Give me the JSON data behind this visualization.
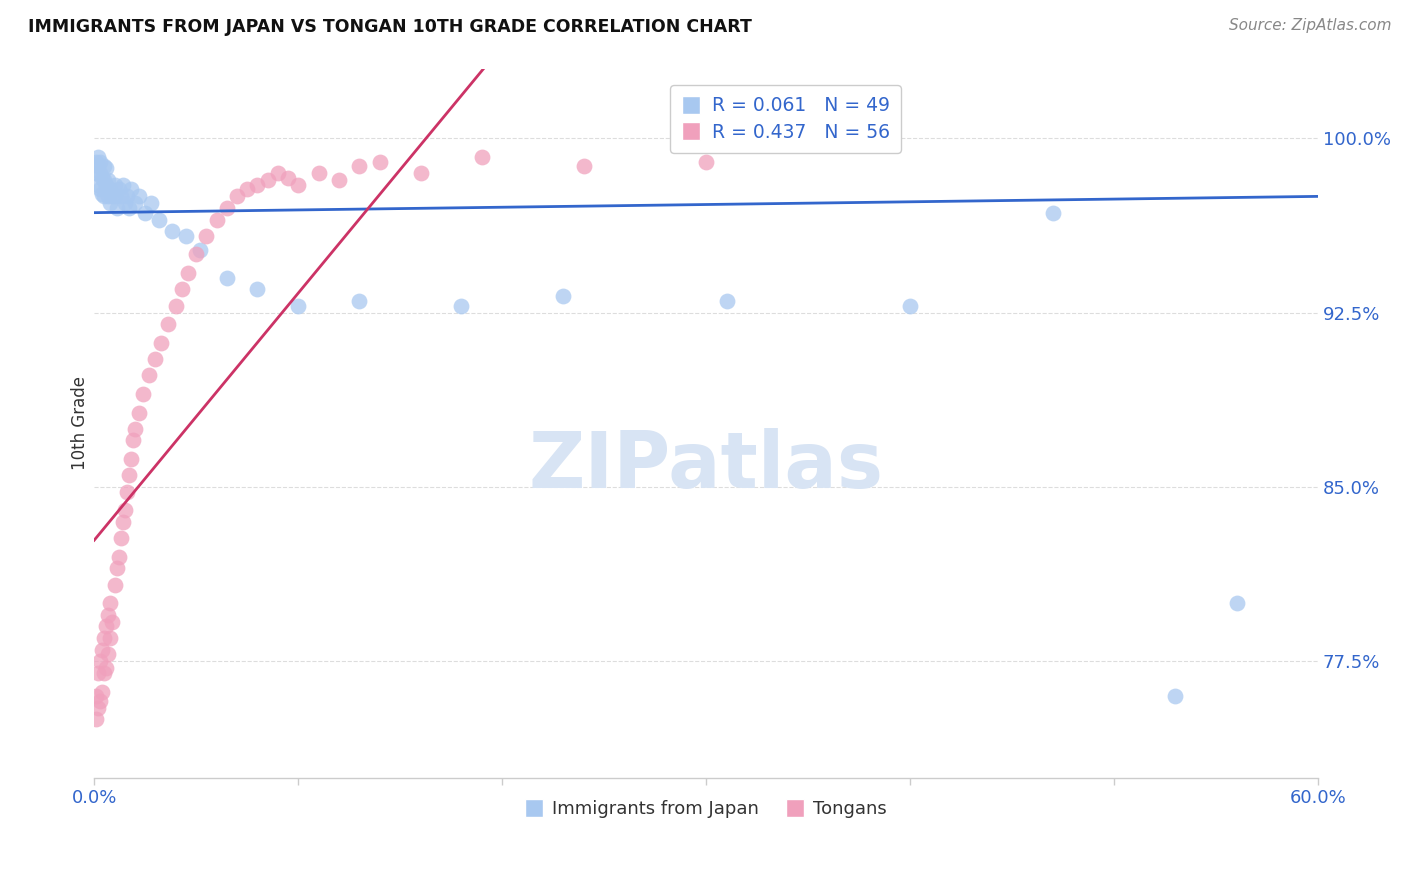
{
  "title": "IMMIGRANTS FROM JAPAN VS TONGAN 10TH GRADE CORRELATION CHART",
  "source": "Source: ZipAtlas.com",
  "ylabel": "10th Grade",
  "ylabel_ticks": [
    "100.0%",
    "92.5%",
    "85.0%",
    "77.5%"
  ],
  "ylabel_tick_vals": [
    1.0,
    0.925,
    0.85,
    0.775
  ],
  "xlim": [
    0.0,
    0.6
  ],
  "ylim": [
    0.725,
    1.03
  ],
  "legend_blue_r": "R = 0.061",
  "legend_blue_n": "N = 49",
  "legend_pink_r": "R = 0.437",
  "legend_pink_n": "N = 56",
  "blue_color": "#A8C8F0",
  "pink_color": "#F0A0BC",
  "blue_line_color": "#3366CC",
  "pink_line_color": "#CC3366",
  "background_color": "#ffffff",
  "grid_color": "#DDDDDD",
  "watermark_color": "#D8E4F4",
  "japan_x": [
    0.001,
    0.001,
    0.002,
    0.002,
    0.002,
    0.003,
    0.003,
    0.003,
    0.004,
    0.004,
    0.005,
    0.005,
    0.005,
    0.006,
    0.006,
    0.007,
    0.007,
    0.008,
    0.008,
    0.009,
    0.01,
    0.01,
    0.011,
    0.012,
    0.013,
    0.014,
    0.015,
    0.016,
    0.017,
    0.018,
    0.02,
    0.022,
    0.025,
    0.028,
    0.032,
    0.038,
    0.045,
    0.052,
    0.065,
    0.08,
    0.1,
    0.13,
    0.18,
    0.23,
    0.31,
    0.4,
    0.47,
    0.53,
    0.56
  ],
  "japan_y": [
    0.99,
    0.985,
    0.992,
    0.988,
    0.98,
    0.985,
    0.978,
    0.99,
    0.983,
    0.976,
    0.988,
    0.982,
    0.975,
    0.98,
    0.987,
    0.975,
    0.982,
    0.978,
    0.972,
    0.975,
    0.98,
    0.975,
    0.97,
    0.978,
    0.975,
    0.98,
    0.972,
    0.975,
    0.97,
    0.978,
    0.972,
    0.975,
    0.968,
    0.972,
    0.965,
    0.96,
    0.958,
    0.952,
    0.94,
    0.935,
    0.928,
    0.93,
    0.928,
    0.932,
    0.93,
    0.928,
    0.968,
    0.76,
    0.8
  ],
  "tongan_x": [
    0.001,
    0.001,
    0.002,
    0.002,
    0.003,
    0.003,
    0.004,
    0.004,
    0.005,
    0.005,
    0.006,
    0.006,
    0.007,
    0.007,
    0.008,
    0.008,
    0.009,
    0.01,
    0.011,
    0.012,
    0.013,
    0.014,
    0.015,
    0.016,
    0.017,
    0.018,
    0.019,
    0.02,
    0.022,
    0.024,
    0.027,
    0.03,
    0.033,
    0.036,
    0.04,
    0.043,
    0.046,
    0.05,
    0.055,
    0.06,
    0.065,
    0.07,
    0.075,
    0.08,
    0.085,
    0.09,
    0.095,
    0.1,
    0.11,
    0.12,
    0.13,
    0.14,
    0.16,
    0.19,
    0.24,
    0.3
  ],
  "tongan_y": [
    0.75,
    0.76,
    0.755,
    0.77,
    0.758,
    0.775,
    0.762,
    0.78,
    0.77,
    0.785,
    0.772,
    0.79,
    0.778,
    0.795,
    0.785,
    0.8,
    0.792,
    0.808,
    0.815,
    0.82,
    0.828,
    0.835,
    0.84,
    0.848,
    0.855,
    0.862,
    0.87,
    0.875,
    0.882,
    0.89,
    0.898,
    0.905,
    0.912,
    0.92,
    0.928,
    0.935,
    0.942,
    0.95,
    0.958,
    0.965,
    0.97,
    0.975,
    0.978,
    0.98,
    0.982,
    0.985,
    0.983,
    0.98,
    0.985,
    0.982,
    0.988,
    0.99,
    0.985,
    0.992,
    0.988,
    0.99
  ]
}
